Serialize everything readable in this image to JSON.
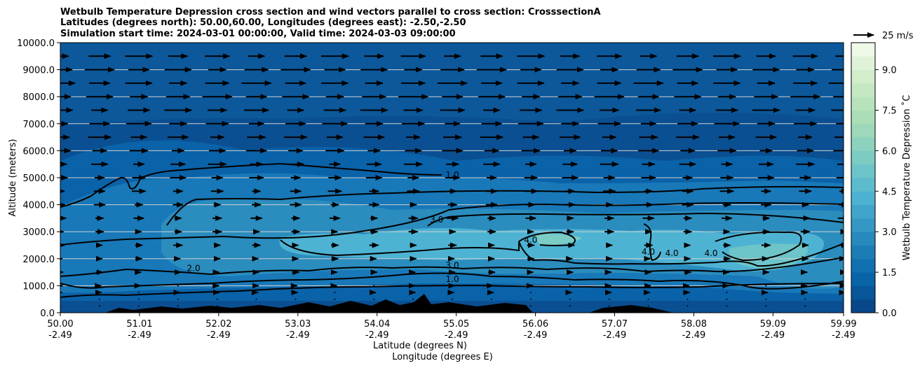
{
  "chart_data": {
    "type": "contour-cross-section",
    "title_lines": [
      "Wetbulb Temperature Depression cross section and wind vectors parallel to cross section: CrosssectionA",
      "Latitudes (degrees north): 50.00,60.00, Longitudes (degrees east): -2.50,-2.50",
      "Simulation start time: 2024-03-01 00:00:00, Valid time: 2024-03-03 09:00:00"
    ],
    "xlabel_lat": "Latitude (degrees N)",
    "xlabel_lon": "Longitude (degrees E)",
    "ylabel": "Altitude (meters)",
    "x_ticks_lat": [
      "50.00",
      "51.01",
      "52.02",
      "53.03",
      "54.04",
      "55.05",
      "56.06",
      "57.07",
      "58.08",
      "59.09",
      "59.99"
    ],
    "x_ticks_lon": [
      "-2.49",
      "-2.49",
      "-2.49",
      "-2.49",
      "-2.49",
      "-2.49",
      "-2.49",
      "-2.49",
      "-2.49",
      "-2.49",
      "-2.49"
    ],
    "xlim": [
      50.0,
      59.99
    ],
    "y_ticks": [
      "0.0",
      "1000.0",
      "2000.0",
      "3000.0",
      "4000.0",
      "5000.0",
      "6000.0",
      "7000.0",
      "8000.0",
      "9000.0",
      "10000.0"
    ],
    "ylim": [
      0,
      10000
    ],
    "grid_horizontal": true,
    "colorbar": {
      "label": "Wetbulb Temperature Depression ˚C",
      "ticks": [
        "0.0",
        "1.5",
        "3.0",
        "4.5",
        "6.0",
        "7.5",
        "9.0"
      ],
      "range": [
        0,
        10
      ],
      "levels": 20,
      "colors": [
        "#084081",
        "#0868ac",
        "#2b8cbe",
        "#4eb3d3",
        "#7bccc4",
        "#a8ddb5",
        "#ccebc5",
        "#f7fcf0"
      ]
    },
    "quiver_key": "25 m/s",
    "contour_labels": [
      {
        "text": "1.0",
        "lat": 55.0,
        "alt": 5100
      },
      {
        "text": "3.0",
        "lat": 54.8,
        "alt": 3450
      },
      {
        "text": "2.0",
        "lat": 51.7,
        "alt": 1650
      },
      {
        "text": "3.0",
        "lat": 55.0,
        "alt": 1750
      },
      {
        "text": "1.0",
        "lat": 55.0,
        "alt": 1250
      },
      {
        "text": "4.0",
        "lat": 56.0,
        "alt": 2700
      },
      {
        "text": "4.0",
        "lat": 57.5,
        "alt": 2250
      },
      {
        "text": "4.0",
        "lat": 57.8,
        "alt": 2200
      },
      {
        "text": "4.0",
        "lat": 58.3,
        "alt": 2200
      }
    ],
    "wind_columns_lat": [
      50.0,
      50.5,
      51.0,
      51.5,
      52.0,
      52.5,
      53.0,
      53.5,
      54.0,
      54.5,
      55.0,
      55.5,
      56.0,
      56.5,
      57.0,
      57.5,
      58.0,
      58.5,
      59.0,
      59.5,
      59.99
    ],
    "wind_level_alt": [
      250,
      500,
      750,
      1000,
      1500,
      2000,
      2500,
      3000,
      3500,
      4000,
      4500,
      5000,
      5500,
      6000,
      6500,
      7000,
      7500,
      8000,
      8500,
      9000,
      9500
    ],
    "wind_speed_profile_ms": [
      1,
      1,
      2,
      2,
      3,
      3,
      4,
      4,
      5,
      5,
      6,
      7,
      8,
      9,
      10,
      11,
      12,
      13,
      13,
      13,
      12
    ]
  }
}
